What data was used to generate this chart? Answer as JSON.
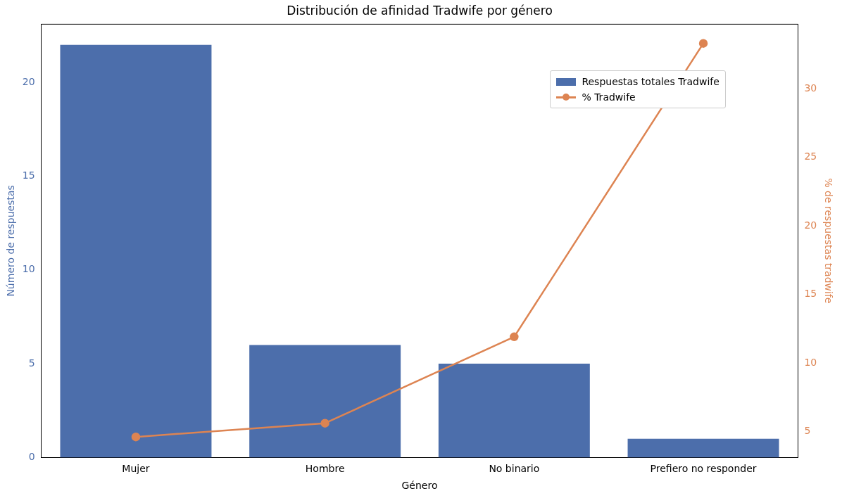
{
  "chart_data": {
    "type": "bar",
    "title": "Distribución de afinidad Tradwife por género",
    "xlabel": "Género",
    "ylabel": "Número de respuestas",
    "y2label": "% de respuestas tradwife",
    "categories": [
      "Mujer",
      "Hombre",
      "No binario",
      "Prefiero no responder"
    ],
    "series": [
      {
        "name": "Respuestas totales Tradwife",
        "color": "#4c6eab",
        "values": [
          22,
          6,
          5,
          1
        ]
      },
      {
        "name": "% Tradwife",
        "type": "line",
        "axis": "y2",
        "color": "#dd8452",
        "values": [
          4.6,
          5.6,
          11.9,
          33.3
        ]
      }
    ],
    "ylim": [
      0,
      23.1
    ],
    "yticks": [
      0,
      5,
      10,
      15,
      20
    ],
    "y2lim": [
      3.1,
      34.7
    ],
    "y2ticks": [
      5,
      10,
      15,
      20,
      25,
      30
    ],
    "grid": false,
    "legend": "top right",
    "marker": "circle"
  }
}
